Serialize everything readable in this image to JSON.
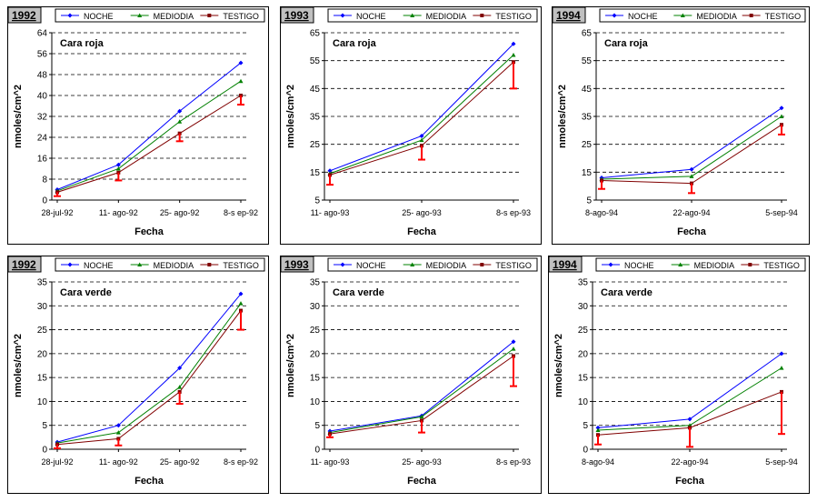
{
  "colors": {
    "NOCHE": "#0000ff",
    "MEDIODIA": "#008000",
    "TESTIGO": "#800000",
    "error": "#ff0000",
    "grid": "#000000"
  },
  "chart_data": [
    {
      "type": "line",
      "year": "1992",
      "subtitle": "Cara roja",
      "legend": [
        "NOCHE",
        "MEDIODIA",
        "TESTIGO"
      ],
      "xlabel": "Fecha",
      "ylabel": "nmoles/cm^2",
      "categories": [
        "28-jul-92",
        "11- ago-92",
        "25- ago-92",
        "8-s ep-92"
      ],
      "ylim": [
        0,
        64
      ],
      "yticks": [
        0,
        8,
        16,
        24,
        32,
        40,
        48,
        56,
        64
      ],
      "grid": true,
      "series": [
        {
          "name": "NOCHE",
          "values": [
            4,
            13.5,
            34,
            52.5
          ]
        },
        {
          "name": "MEDIODIA",
          "values": [
            3.5,
            12,
            30,
            45.5
          ]
        },
        {
          "name": "TESTIGO",
          "values": [
            3,
            10.5,
            25.5,
            40
          ]
        }
      ],
      "errors_low": [
        1.5,
        7.5,
        22.5,
        36.5
      ]
    },
    {
      "type": "line",
      "year": "1993",
      "subtitle": "Cara roja",
      "legend": [
        "NOCHE",
        "MEDIODIA",
        "TESTIGO"
      ],
      "xlabel": "Fecha",
      "ylabel": "nmoles/cm^2",
      "categories": [
        "11- ago-93",
        "25- ago-93",
        "8-s ep-93"
      ],
      "ylim": [
        5,
        65
      ],
      "yticks": [
        5,
        15,
        25,
        35,
        45,
        55,
        65
      ],
      "grid": true,
      "series": [
        {
          "name": "NOCHE",
          "values": [
            15.5,
            28,
            61
          ]
        },
        {
          "name": "MEDIODIA",
          "values": [
            14.5,
            26.5,
            57
          ]
        },
        {
          "name": "TESTIGO",
          "values": [
            14,
            24.5,
            54.5
          ]
        }
      ],
      "errors_low": [
        10.5,
        19.5,
        45
      ]
    },
    {
      "type": "line",
      "year": "1994",
      "subtitle": "Cara roja",
      "legend": [
        "NOCHE",
        "MEDIODIA",
        "TESTIGO"
      ],
      "xlabel": "Fecha",
      "ylabel": "nmoles/cm^2",
      "categories": [
        "8-ago-94",
        "22-ago-94",
        "5-sep-94"
      ],
      "ylim": [
        5,
        65
      ],
      "yticks": [
        5,
        15,
        25,
        35,
        45,
        55,
        65
      ],
      "grid": true,
      "series": [
        {
          "name": "NOCHE",
          "values": [
            13,
            16,
            38
          ]
        },
        {
          "name": "MEDIODIA",
          "values": [
            12.5,
            13.5,
            35
          ]
        },
        {
          "name": "TESTIGO",
          "values": [
            12,
            11,
            32
          ]
        }
      ],
      "errors_low": [
        9,
        7.5,
        28.5
      ]
    },
    {
      "type": "line",
      "year": "1992",
      "subtitle": "Cara verde",
      "legend": [
        "NOCHE",
        "MEDIODIA",
        "TESTIGO"
      ],
      "xlabel": "Fecha",
      "ylabel": "nmoles/cm^2",
      "categories": [
        "28-jul-92",
        "11- ago-92",
        "25- ago-92",
        "8-s ep-92"
      ],
      "ylim": [
        0,
        35
      ],
      "yticks": [
        0,
        5,
        10,
        15,
        20,
        25,
        30,
        35
      ],
      "grid": true,
      "series": [
        {
          "name": "NOCHE",
          "values": [
            1.5,
            5,
            17,
            32.5
          ]
        },
        {
          "name": "MEDIODIA",
          "values": [
            1.3,
            3.5,
            13,
            30.5
          ]
        },
        {
          "name": "TESTIGO",
          "values": [
            1,
            2.2,
            12,
            29
          ]
        }
      ],
      "errors_low": [
        0.2,
        0.8,
        9.5,
        25
      ]
    },
    {
      "type": "line",
      "year": "1993",
      "subtitle": "Cara verde",
      "legend": [
        "NOCHE",
        "MEDIODIA",
        "TESTIGO"
      ],
      "xlabel": "Fecha",
      "ylabel": "nmoles/cm^2",
      "categories": [
        "11- ago-93",
        "25- ago-93",
        "8-s ep-93"
      ],
      "ylim": [
        0,
        35
      ],
      "yticks": [
        0,
        5,
        10,
        15,
        20,
        25,
        30,
        35
      ],
      "grid": true,
      "series": [
        {
          "name": "NOCHE",
          "values": [
            3.8,
            7,
            22.5
          ]
        },
        {
          "name": "MEDIODIA",
          "values": [
            3.5,
            6.8,
            21
          ]
        },
        {
          "name": "TESTIGO",
          "values": [
            3.2,
            6,
            19.5
          ]
        }
      ],
      "errors_low": [
        2.5,
        3.5,
        13.2
      ]
    },
    {
      "type": "line",
      "year": "1994",
      "subtitle": "Cara verde",
      "legend": [
        "NOCHE",
        "MEDIODIA",
        "TESTIGO"
      ],
      "xlabel": "Fecha",
      "ylabel": "nmoles/cm^2",
      "categories": [
        "8-ago-94",
        "22-ago-94",
        "5-sep-94"
      ],
      "ylim": [
        0,
        35
      ],
      "yticks": [
        0,
        5,
        10,
        15,
        20,
        25,
        30,
        35
      ],
      "grid": true,
      "series": [
        {
          "name": "NOCHE",
          "values": [
            4.5,
            6.3,
            20
          ]
        },
        {
          "name": "MEDIODIA",
          "values": [
            4,
            5,
            17
          ]
        },
        {
          "name": "TESTIGO",
          "values": [
            3,
            4.5,
            12
          ]
        }
      ],
      "errors_low": [
        1,
        0.5,
        3.2
      ]
    }
  ]
}
